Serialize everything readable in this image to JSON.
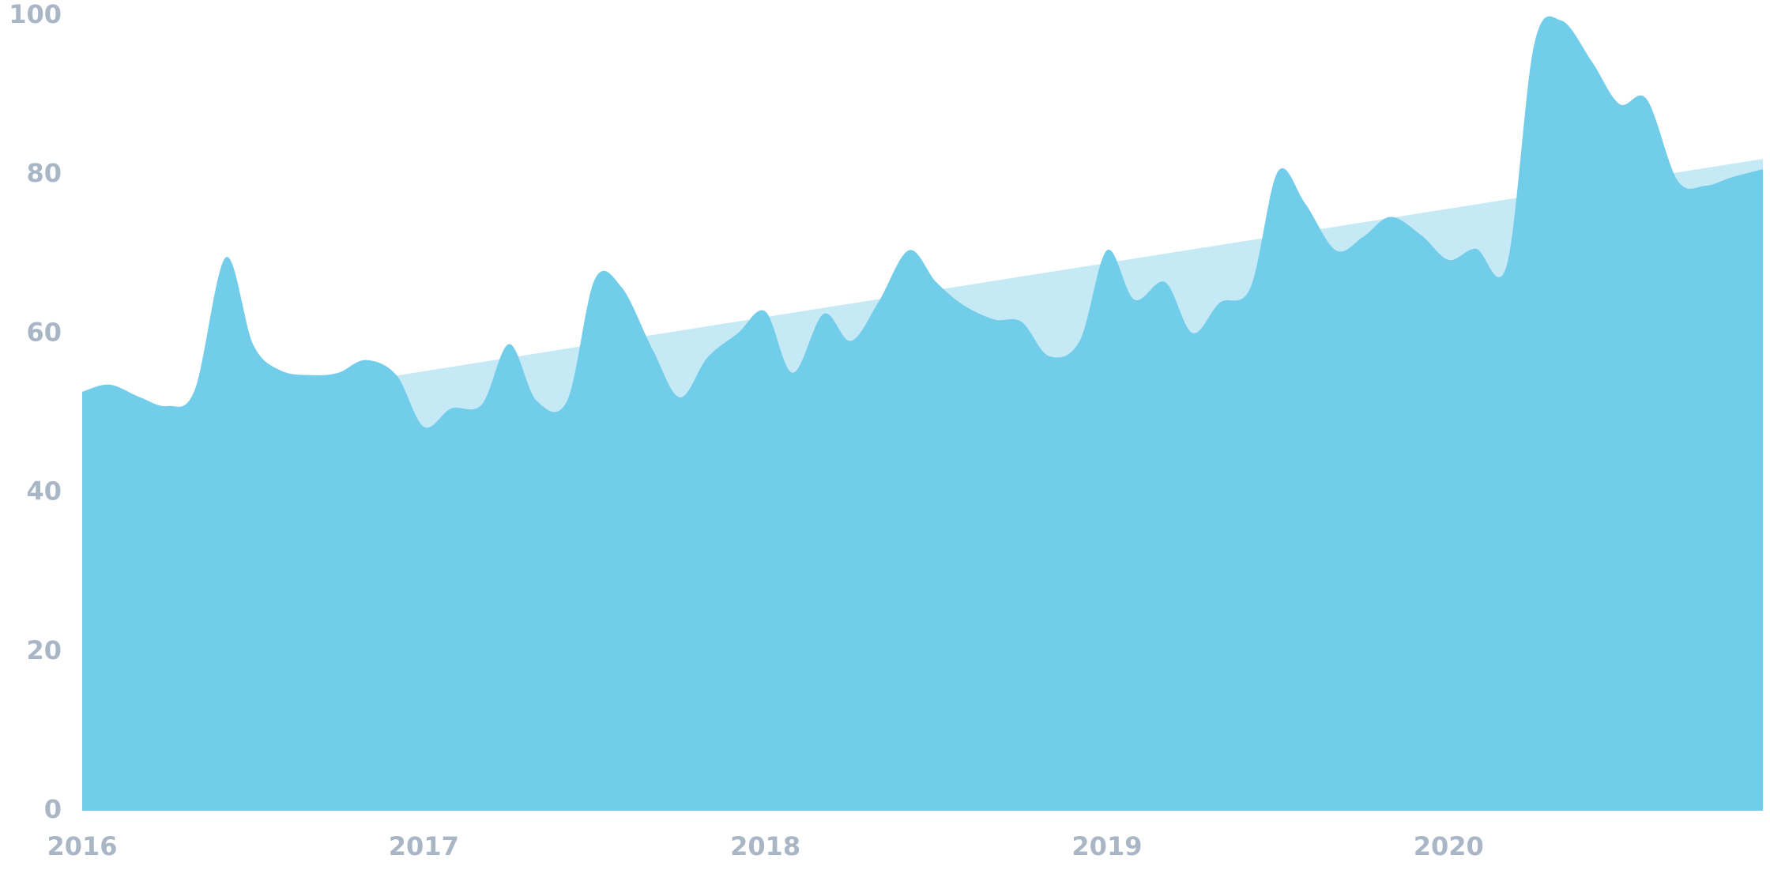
{
  "chart_data": {
    "type": "area",
    "series": [
      {
        "color": "#c6eaf5",
        "x": [
          2016.9,
          2020.92
        ],
        "values": [
          54.6,
          82
        ]
      },
      {
        "color": "#72cdea",
        "x": [
          2016,
          2016.08,
          2016.17,
          2016.25,
          2016.33,
          2016.42,
          2016.5,
          2016.58,
          2016.67,
          2016.75,
          2016.83,
          2016.92,
          2017,
          2017.08,
          2017.17,
          2017.25,
          2017.33,
          2017.42,
          2017.5,
          2017.58,
          2017.67,
          2017.75,
          2017.83,
          2017.92,
          2018,
          2018.08,
          2018.17,
          2018.25,
          2018.33,
          2018.42,
          2018.5,
          2018.58,
          2018.67,
          2018.75,
          2018.83,
          2018.92,
          2019,
          2019.08,
          2019.17,
          2019.25,
          2019.33,
          2019.42,
          2019.5,
          2019.58,
          2019.67,
          2019.75,
          2019.83,
          2019.92,
          2020,
          2020.08,
          2020.17,
          2020.25,
          2020.33,
          2020.42,
          2020.5,
          2020.58,
          2020.67,
          2020.75,
          2020.83,
          2020.92
        ],
        "values": [
          52.7,
          53.6,
          52.0,
          50.9,
          53,
          69.6,
          58.7,
          55.4,
          54.8,
          55.1,
          56.7,
          54.8,
          48.3,
          50.6,
          51.1,
          58.7,
          51.6,
          51.6,
          66.8,
          65.8,
          58,
          52,
          57,
          60.1,
          62.8,
          55.1,
          62.5,
          59.1,
          63.9,
          70.5,
          66.5,
          63.6,
          61.8,
          61.5,
          57.2,
          59.1,
          70.5,
          64.3,
          66.5,
          60.1,
          63.9,
          65.8,
          80.4,
          76.4,
          70.5,
          72.2,
          74.7,
          72.4,
          69.3,
          70.7,
          68.6,
          96.3,
          99.4,
          94.2,
          88.9,
          89.5,
          79.3,
          78.6,
          79.7,
          80.7
        ]
      }
    ],
    "xlim": [
      2016,
      2020.92
    ],
    "xticks": [
      2016,
      2017,
      2018,
      2019,
      2020
    ],
    "ylim": [
      0,
      100
    ],
    "yticks": [
      0,
      20,
      40,
      60,
      80,
      100
    ]
  }
}
